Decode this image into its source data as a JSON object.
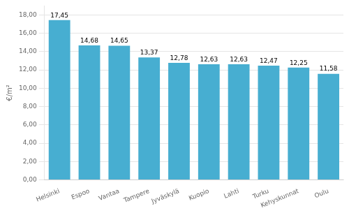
{
  "chart_data": {
    "type": "bar",
    "ylabel": "€/m²",
    "categories": [
      "Helsinki",
      "Espoo",
      "Vantaa",
      "Tampere",
      "Jyväskylä",
      "Kuopio",
      "Lahti",
      "Turku",
      "Kehyskunnat",
      "Oulu"
    ],
    "values": [
      17.45,
      14.68,
      14.65,
      13.37,
      12.78,
      12.63,
      12.63,
      12.47,
      12.25,
      11.58
    ],
    "value_labels": [
      "17,45",
      "14,68",
      "14,65",
      "13,37",
      "12,78",
      "12,63",
      "12,63",
      "12,47",
      "12,25",
      "11,58"
    ],
    "data_labels": true,
    "color": "#47aed1",
    "ylim": [
      0,
      19
    ],
    "yticks": [
      {
        "value": 0,
        "label": "0,00"
      },
      {
        "value": 2,
        "label": "2,00"
      },
      {
        "value": 4,
        "label": "4,00"
      },
      {
        "value": 6,
        "label": "6,00"
      },
      {
        "value": 8,
        "label": "8,00"
      },
      {
        "value": 10,
        "label": "10,00"
      },
      {
        "value": 12,
        "label": "12,00"
      },
      {
        "value": 14,
        "label": "14,00"
      },
      {
        "value": 16,
        "label": "16,00"
      },
      {
        "value": 18,
        "label": "18,00"
      }
    ],
    "grid": true
  }
}
